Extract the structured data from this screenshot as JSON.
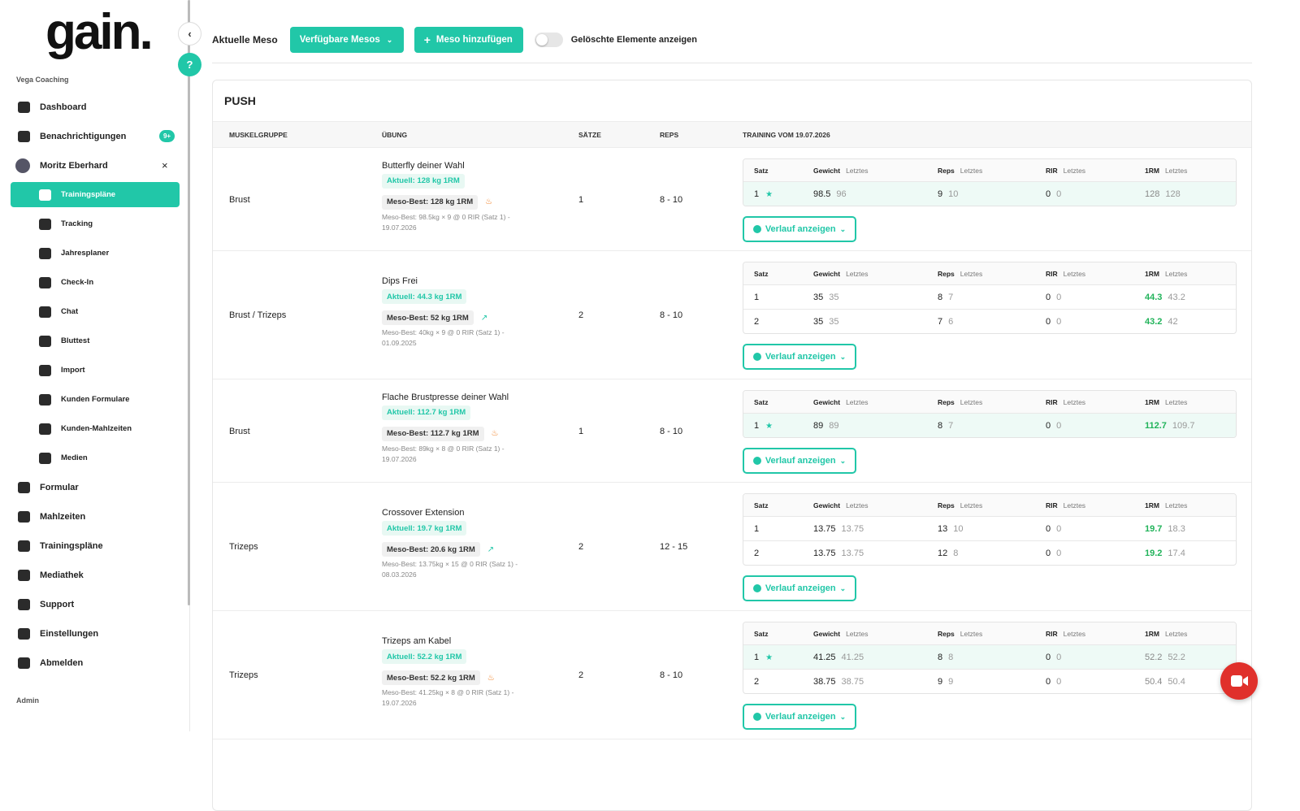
{
  "sidebar": {
    "logo": "gain.",
    "org": "Vega Coaching",
    "nav": [
      {
        "label": "Dashboard"
      },
      {
        "label": "Benachrichtigungen",
        "badge": "9+"
      },
      {
        "label": "Moritz Eberhard",
        "items": [
          {
            "label": "Trainingspläne",
            "active": true
          },
          {
            "label": "Tracking"
          },
          {
            "label": "Jahresplaner"
          },
          {
            "label": "Check-In"
          },
          {
            "label": "Chat"
          },
          {
            "label": "Bluttest"
          },
          {
            "label": "Import"
          },
          {
            "label": "Kunden Formulare"
          },
          {
            "label": "Kunden-Mahlzeiten"
          },
          {
            "label": "Medien"
          }
        ]
      },
      {
        "label": "Formular"
      },
      {
        "label": "Mahlzeiten"
      },
      {
        "label": "Trainingspläne"
      },
      {
        "label": "Mediathek"
      },
      {
        "label": "Support"
      },
      {
        "label": "Einstellungen"
      },
      {
        "label": "Abmelden"
      }
    ],
    "section": "Admin"
  },
  "toolbar": {
    "label": "Aktuelle Meso",
    "select": "Verfügbare Mesos",
    "add_button": "Meso hinzufügen",
    "toggle_label": "Gelöschte Elemente anzeigen",
    "toggle_on": false
  },
  "plan": {
    "title": "PUSH",
    "headers": [
      "MUSKELGRUPPE",
      "ÜBUNG",
      "SÄTZE",
      "REPS",
      "TRAINING VOM 19.07.2026"
    ],
    "set_table": {
      "columns": [
        "Satz",
        "Gewicht",
        "Reps",
        "RIR",
        "1RM"
      ],
      "last_label": "Letztes"
    },
    "history_button": "Verlauf anzeigen",
    "rows": [
      {
        "muscle": "Brust",
        "exercise": "Butterfly deiner Wahl",
        "current": "Aktuell: 128 kg 1RM",
        "best": "Meso-Best: 128 kg 1RM",
        "best_icon": "fire",
        "note": "Meso-Best: 98.5kg × 9 @ 0 RIR (Satz 1) - 19.07.2026",
        "sets": "1",
        "reps": "8 - 10",
        "set_rows": [
          {
            "set": "1",
            "star": true,
            "weight": "98.5",
            "weight_last": "96",
            "reps": "9",
            "reps_last": "10",
            "rir": "0",
            "rir_last": "0",
            "orm": "128",
            "orm_last": "128",
            "improved": false
          }
        ]
      },
      {
        "muscle": "Brust / Trizeps",
        "exercise": "Dips Frei",
        "current": "Aktuell: 44.3 kg 1RM",
        "best": "Meso-Best: 52 kg 1RM",
        "best_icon": "trend",
        "note": "Meso-Best: 40kg × 9 @ 0 RIR (Satz 1) - 01.09.2025",
        "sets": "2",
        "reps": "8 - 10",
        "set_rows": [
          {
            "set": "1",
            "star": false,
            "weight": "35",
            "weight_last": "35",
            "reps": "8",
            "reps_last": "7",
            "rir": "0",
            "rir_last": "0",
            "orm": "44.3",
            "orm_last": "43.2",
            "improved": true
          },
          {
            "set": "2",
            "star": false,
            "weight": "35",
            "weight_last": "35",
            "reps": "7",
            "reps_last": "6",
            "rir": "0",
            "rir_last": "0",
            "orm": "43.2",
            "orm_last": "42",
            "improved": true
          }
        ]
      },
      {
        "muscle": "Brust",
        "exercise": "Flache Brustpresse deiner Wahl",
        "current": "Aktuell: 112.7 kg 1RM",
        "best": "Meso-Best: 112.7 kg 1RM",
        "best_icon": "fire",
        "note": "Meso-Best: 89kg × 8 @ 0 RIR (Satz 1) - 19.07.2026",
        "sets": "1",
        "reps": "8 - 10",
        "set_rows": [
          {
            "set": "1",
            "star": true,
            "weight": "89",
            "weight_last": "89",
            "reps": "8",
            "reps_last": "7",
            "rir": "0",
            "rir_last": "0",
            "orm": "112.7",
            "orm_last": "109.7",
            "improved": true
          }
        ]
      },
      {
        "muscle": "Trizeps",
        "exercise": "Crossover Extension",
        "current": "Aktuell: 19.7 kg 1RM",
        "best": "Meso-Best: 20.6 kg 1RM",
        "best_icon": "trend",
        "note": "Meso-Best: 13.75kg × 15 @ 0 RIR (Satz 1) - 08.03.2026",
        "sets": "2",
        "reps": "12 - 15",
        "set_rows": [
          {
            "set": "1",
            "star": false,
            "weight": "13.75",
            "weight_last": "13.75",
            "reps": "13",
            "reps_last": "10",
            "rir": "0",
            "rir_last": "0",
            "orm": "19.7",
            "orm_last": "18.3",
            "improved": true
          },
          {
            "set": "2",
            "star": false,
            "weight": "13.75",
            "weight_last": "13.75",
            "reps": "12",
            "reps_last": "8",
            "rir": "0",
            "rir_last": "0",
            "orm": "19.2",
            "orm_last": "17.4",
            "improved": true
          }
        ]
      },
      {
        "muscle": "Trizeps",
        "exercise": "Trizeps am Kabel",
        "current": "Aktuell: 52.2 kg 1RM",
        "best": "Meso-Best: 52.2 kg 1RM",
        "best_icon": "fire",
        "note": "Meso-Best: 41.25kg × 8 @ 0 RIR (Satz 1) - 19.07.2026",
        "sets": "2",
        "reps": "8 - 10",
        "set_rows": [
          {
            "set": "1",
            "star": true,
            "weight": "41.25",
            "weight_last": "41.25",
            "reps": "8",
            "reps_last": "8",
            "rir": "0",
            "rir_last": "0",
            "orm": "52.2",
            "orm_last": "52.2",
            "improved": false
          },
          {
            "set": "2",
            "star": false,
            "weight": "38.75",
            "weight_last": "38.75",
            "reps": "9",
            "reps_last": "9",
            "rir": "0",
            "rir_last": "0",
            "orm": "50.4",
            "orm_last": "50.4",
            "improved": false
          }
        ]
      }
    ]
  }
}
